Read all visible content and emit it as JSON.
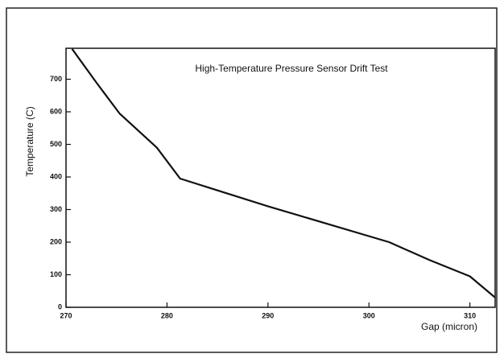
{
  "chart_data": {
    "type": "line",
    "title": "High-Temperature Pressure Sensor Drift Test",
    "x_label": "Gap (micron)",
    "y_label": "Temperature (C)",
    "x": [
      270.6,
      273,
      275.3,
      279,
      281.3,
      290,
      302,
      306,
      310,
      312.5
    ],
    "values": [
      793,
      690,
      595,
      490,
      395,
      310,
      200,
      145,
      95,
      30
    ],
    "color": "#111111",
    "xlim": [
      270,
      312.5
    ],
    "xticks": [
      270,
      280,
      290,
      300,
      310
    ],
    "ylim": [
      0,
      795
    ],
    "yticks": [
      0,
      100,
      200,
      300,
      400,
      500,
      600,
      700
    ]
  }
}
